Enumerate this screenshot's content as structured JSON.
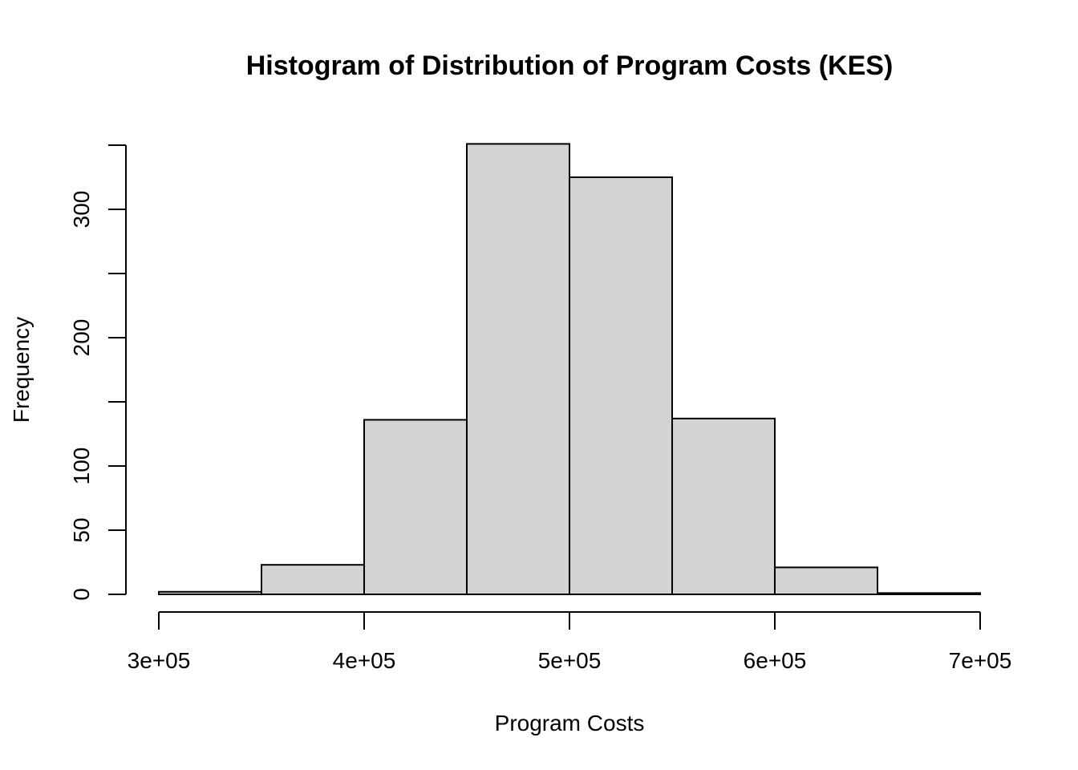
{
  "chart_data": {
    "type": "bar",
    "title": "Histogram of Distribution of Program Costs (KES)",
    "xlabel": "Program Costs",
    "ylabel": "Frequency",
    "bins": [
      {
        "start": 300000,
        "end": 350000,
        "count": 2
      },
      {
        "start": 350000,
        "end": 400000,
        "count": 23
      },
      {
        "start": 400000,
        "end": 450000,
        "count": 136
      },
      {
        "start": 450000,
        "end": 500000,
        "count": 351
      },
      {
        "start": 500000,
        "end": 550000,
        "count": 325
      },
      {
        "start": 550000,
        "end": 600000,
        "count": 137
      },
      {
        "start": 600000,
        "end": 650000,
        "count": 21
      },
      {
        "start": 650000,
        "end": 700000,
        "count": 1
      }
    ],
    "x_ticks": [
      300000,
      400000,
      500000,
      600000,
      700000
    ],
    "x_tick_labels": [
      "3e+05",
      "4e+05",
      "5e+05",
      "6e+05",
      "7e+05"
    ],
    "y_ticks": [
      0,
      50,
      100,
      150,
      200,
      250,
      300,
      350
    ],
    "y_tick_labels": [
      "0",
      "50",
      "100",
      "",
      "200",
      "",
      "300",
      ""
    ],
    "xlim": [
      300000,
      700000
    ],
    "ylim": [
      0,
      350
    ],
    "grid": false,
    "colors": {
      "bar_fill": "#d3d3d3",
      "bar_stroke": "#000000"
    }
  }
}
